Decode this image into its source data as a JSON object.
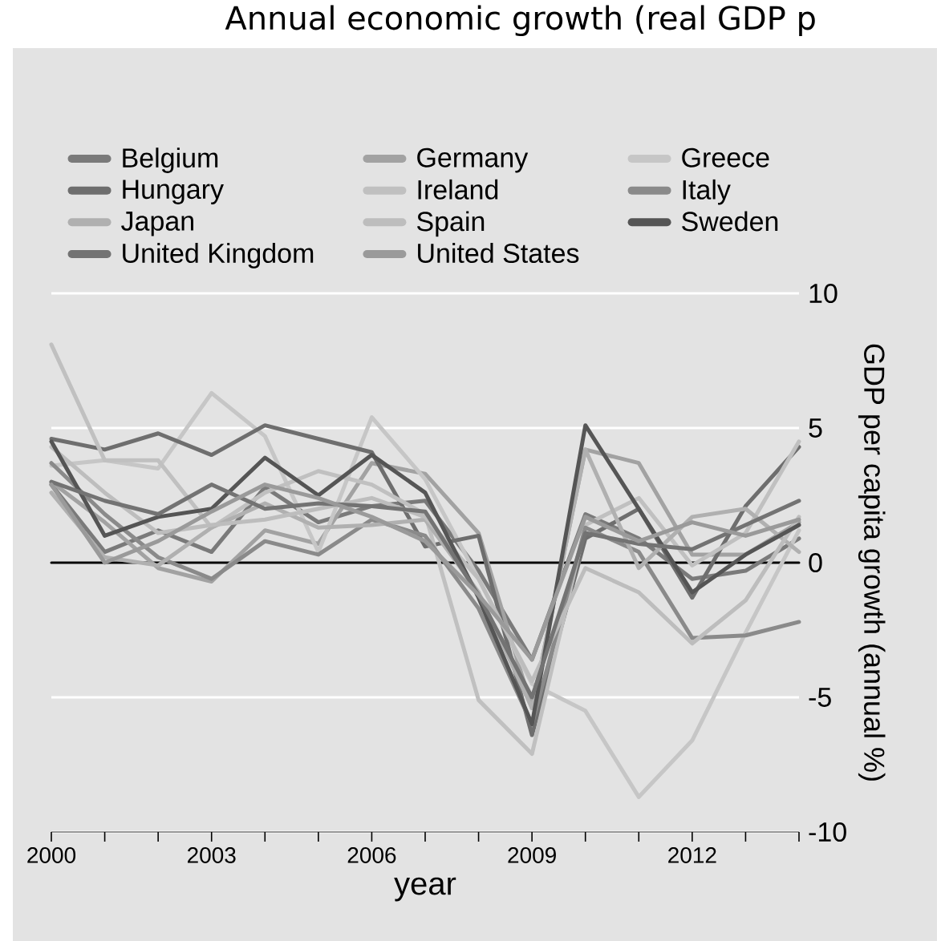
{
  "chart_data": {
    "type": "line",
    "title": "Annual economic growth (real GDP p",
    "xlabel": "year",
    "ylabel": "GDP per capita growth (annual %)",
    "x": [
      2000,
      2001,
      2002,
      2003,
      2004,
      2005,
      2006,
      2007,
      2008,
      2009,
      2010,
      2011,
      2012,
      2013,
      2014
    ],
    "xlim": [
      2000,
      2014
    ],
    "xticks": [
      2000,
      {
        "value": 2001,
        "label": null
      },
      {
        "value": 2002,
        "label": null
      },
      2003,
      {
        "value": 2004,
        "label": null
      },
      {
        "value": 2005,
        "label": null
      },
      2006,
      {
        "value": 2007,
        "label": null
      },
      {
        "value": 2008,
        "label": null
      },
      2009,
      {
        "value": 2010,
        "label": null
      },
      {
        "value": 2011,
        "label": null
      },
      2012,
      {
        "value": 2013,
        "label": null
      },
      {
        "value": 2014,
        "label": null
      }
    ],
    "ylim": [
      -10,
      10
    ],
    "yticks": [
      -10,
      -5,
      0,
      5,
      10
    ],
    "grid": "y",
    "legend": "top",
    "ref_lines": [
      {
        "axis": "y",
        "value": 0,
        "color": "#000000"
      }
    ],
    "series": [
      {
        "name": "Belgium",
        "color": "#7a7a7a",
        "values": [
          2.9,
          0.4,
          1.2,
          0.4,
          2.8,
          1.5,
          2.1,
          2.3,
          -0.3,
          -3.6,
          1.8,
          0.9,
          -0.6,
          -0.3,
          0.9
        ]
      },
      {
        "name": "Germany",
        "color": "#a2a2a2",
        "values": [
          3.0,
          1.5,
          -0.2,
          -0.7,
          1.2,
          0.7,
          3.7,
          3.3,
          1.1,
          -5.4,
          4.2,
          3.7,
          0.3,
          0.3,
          1.5
        ]
      },
      {
        "name": "Greece",
        "color": "#c6c6c6",
        "values": [
          3.6,
          3.8,
          3.5,
          6.3,
          4.7,
          0.4,
          5.4,
          3.1,
          -0.6,
          -4.5,
          -5.5,
          -8.7,
          -6.6,
          -2.6,
          1.2
        ]
      },
      {
        "name": "Hungary",
        "color": "#6e6e6e",
        "values": [
          4.6,
          4.2,
          4.8,
          4.0,
          5.1,
          4.6,
          4.1,
          0.6,
          1.0,
          -6.4,
          0.9,
          2.0,
          -1.3,
          2.1,
          4.3
        ]
      },
      {
        "name": "Ireland",
        "color": "#c0c0c0",
        "values": [
          8.1,
          3.8,
          3.8,
          1.3,
          2.6,
          3.4,
          2.9,
          1.8,
          -5.1,
          -7.1,
          1.4,
          2.4,
          -0.1,
          1.1,
          4.5
        ]
      },
      {
        "name": "Italy",
        "color": "#8a8a8a",
        "values": [
          3.7,
          1.8,
          0.2,
          -0.6,
          0.8,
          0.3,
          1.6,
          1.0,
          -1.7,
          -6.0,
          1.3,
          0.4,
          -2.8,
          -2.7,
          -2.2
        ]
      },
      {
        "name": "Japan",
        "color": "#b0b0b0",
        "values": [
          2.6,
          0.2,
          -0.1,
          1.3,
          2.2,
          1.3,
          1.4,
          1.6,
          -1.1,
          -5.4,
          4.2,
          -0.2,
          1.7,
          2.0,
          0.4
        ]
      },
      {
        "name": "Spain",
        "color": "#bdbdbd",
        "values": [
          4.3,
          2.6,
          1.1,
          1.4,
          1.6,
          2.0,
          2.4,
          1.7,
          -0.6,
          -4.4,
          -0.2,
          -1.1,
          -3.0,
          -1.4,
          1.7
        ]
      },
      {
        "name": "Sweden",
        "color": "#555555",
        "values": [
          4.5,
          1.0,
          1.7,
          2.0,
          3.9,
          2.5,
          4.0,
          2.6,
          -1.3,
          -6.0,
          5.1,
          2.0,
          -1.1,
          0.3,
          1.4
        ]
      },
      {
        "name": "United Kingdom",
        "color": "#737373",
        "values": [
          3.0,
          2.3,
          1.8,
          2.9,
          2.0,
          2.2,
          2.1,
          1.9,
          -1.2,
          -5.0,
          1.1,
          0.7,
          0.5,
          1.4,
          2.3
        ]
      },
      {
        "name": "United States",
        "color": "#9a9a9a",
        "values": [
          2.9,
          0.0,
          0.8,
          1.9,
          2.9,
          2.4,
          1.7,
          0.8,
          -1.2,
          -3.6,
          1.7,
          0.8,
          1.5,
          1.0,
          1.6
        ]
      }
    ]
  }
}
